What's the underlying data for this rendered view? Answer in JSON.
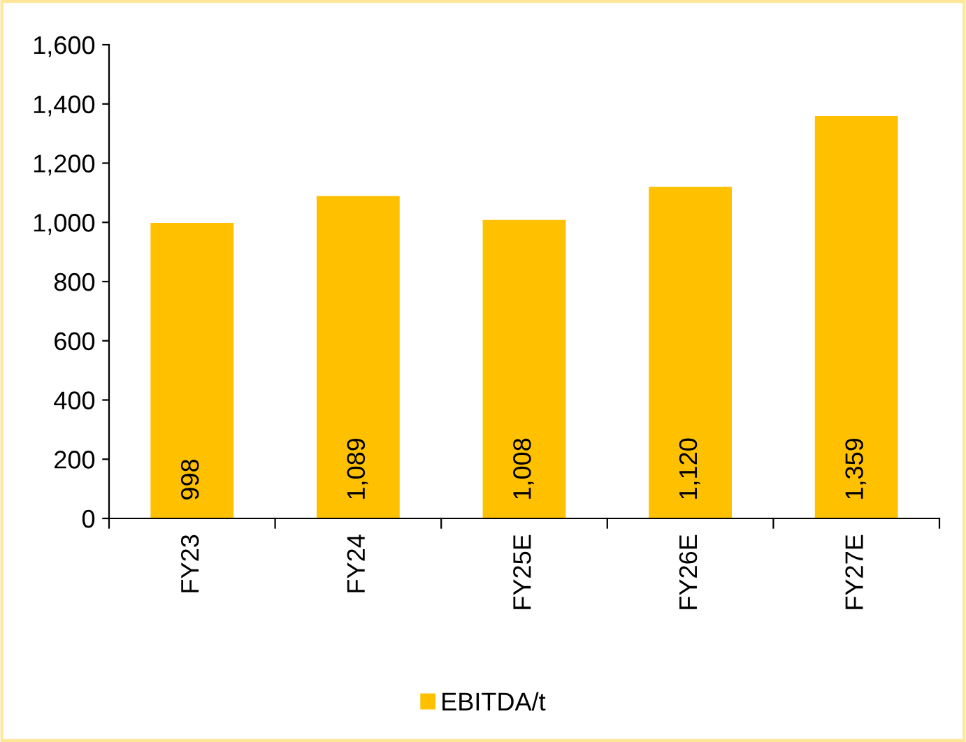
{
  "chart_data": {
    "type": "bar",
    "categories": [
      "FY23",
      "FY24",
      "FY25E",
      "FY26E",
      "FY27E"
    ],
    "series": [
      {
        "name": "EBITDA/t",
        "color": "#ffc000",
        "values": [
          998,
          1089,
          1008,
          1120,
          1359
        ],
        "value_labels": [
          "998",
          "1,089",
          "1,008",
          "1,120",
          "1,359"
        ]
      }
    ],
    "ylim": [
      0,
      1600
    ],
    "yticks": [
      {
        "value": 0,
        "label": "0"
      },
      {
        "value": 200,
        "label": "200"
      },
      {
        "value": 400,
        "label": "400"
      },
      {
        "value": 600,
        "label": "600"
      },
      {
        "value": 800,
        "label": "800"
      },
      {
        "value": 1000,
        "label": "1,000"
      },
      {
        "value": 1200,
        "label": "1,200"
      },
      {
        "value": 1400,
        "label": "1,400"
      },
      {
        "value": 1600,
        "label": "1,600"
      }
    ],
    "grid": false,
    "legend": "bottom"
  }
}
